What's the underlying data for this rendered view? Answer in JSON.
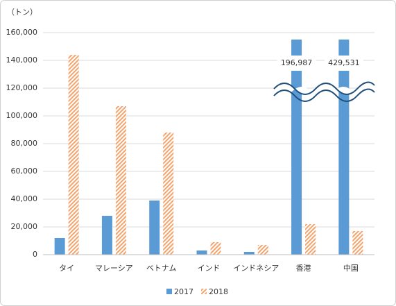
{
  "chart_data": {
    "type": "bar",
    "y_label": "（トン）",
    "categories": [
      "タイ",
      "マレーシア",
      "ベトナム",
      "インド",
      "インドネシア",
      "香港",
      "中国"
    ],
    "series": [
      {
        "name": "2017",
        "color": "#5b9bd5",
        "values": [
          12000,
          28000,
          39000,
          3000,
          2000,
          196987,
          429531
        ],
        "value_labels": [
          null,
          null,
          null,
          null,
          null,
          "196,987",
          "429,531"
        ]
      },
      {
        "name": "2018",
        "color": "#ed7d31",
        "values": [
          144000,
          107000,
          88000,
          9000,
          7000,
          22000,
          17000
        ]
      }
    ],
    "ylim": [
      0,
      160000
    ],
    "yticks": [
      0,
      {
        "value": 20000,
        "label": "20,000"
      },
      {
        "value": 40000,
        "label": "40,000"
      },
      {
        "value": 60000,
        "label": "60,000"
      },
      {
        "value": 80000,
        "label": "80,000"
      },
      {
        "value": 100000,
        "label": "100,000"
      },
      {
        "value": 120000,
        "label": "120,000"
      },
      {
        "value": 140000,
        "label": "140,000"
      },
      {
        "value": 160000,
        "label": "160,000"
      }
    ],
    "grid": true,
    "legend": "bottom"
  }
}
